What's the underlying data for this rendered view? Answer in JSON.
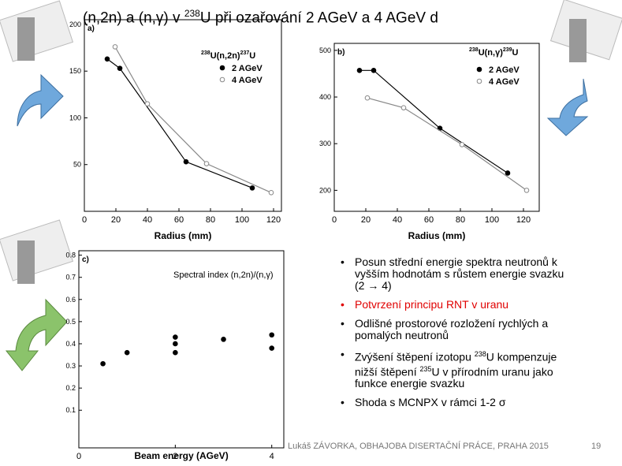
{
  "title": [
    {
      "text": "(n,2n) a (n,γ) v "
    },
    {
      "text": "238",
      "sup": true
    },
    {
      "text": "U při ozařování 2 AGeV a 4 AGeV d"
    }
  ],
  "chart_data": [
    {
      "type": "scatter",
      "label": "a)",
      "fit": true,
      "annotation": [
        {
          "text": "238",
          "sup": true
        },
        {
          "text": "U(n,2n)"
        },
        {
          "text": "237",
          "sup": true
        },
        {
          "text": "U"
        }
      ],
      "xlabel": "Radius (mm)",
      "xlim": [
        0,
        125
      ],
      "xticks": [
        0,
        20,
        40,
        60,
        80,
        100,
        120
      ],
      "ylim": [
        0,
        205
      ],
      "yticks": [
        50,
        100,
        150,
        200
      ],
      "series": [
        {
          "name": "2 AGeV",
          "color": "#000000",
          "fill": "#000000",
          "x": [
            14.5,
            22.5,
            64.5,
            106.5
          ],
          "values": [
            163,
            153,
            53,
            25
          ]
        },
        {
          "name": "4 AGeV",
          "color": "#888888",
          "fill": "#ffffff",
          "x": [
            19.5,
            40,
            77.5,
            118.5
          ],
          "values": [
            176,
            115,
            51,
            20
          ]
        }
      ]
    },
    {
      "type": "scatter",
      "label": "b)",
      "fit": true,
      "annotation": [
        {
          "text": "238",
          "sup": true
        },
        {
          "text": "U(n,γ)"
        },
        {
          "text": "239",
          "sup": true
        },
        {
          "text": "U"
        }
      ],
      "xlabel": "Radius (mm)",
      "xlim": [
        0,
        130
      ],
      "xticks": [
        0,
        20,
        40,
        60,
        80,
        100,
        120
      ],
      "ylim": [
        155,
        515
      ],
      "yticks": [
        200,
        300,
        400,
        500
      ],
      "series": [
        {
          "name": "2 AGeV",
          "color": "#000000",
          "fill": "#000000",
          "x": [
            16,
            25,
            67,
            110
          ],
          "values": [
            457,
            457,
            333,
            237
          ]
        },
        {
          "name": "4 AGeV",
          "color": "#888888",
          "fill": "#ffffff",
          "x": [
            21,
            44,
            81,
            122
          ],
          "values": [
            398,
            377,
            298,
            200
          ]
        }
      ]
    },
    {
      "type": "scatter",
      "label": "c)",
      "fit": false,
      "annotation": [
        {
          "text": "Spectral index (n,2n)/(n,γ)"
        }
      ],
      "xlabel": "Beam energy (AGeV)",
      "xlim": [
        0,
        4.25
      ],
      "xticks": [
        0,
        2,
        4
      ],
      "ylim": [
        -0.07,
        0.82
      ],
      "yticks": [
        0.1,
        0.2,
        0.3,
        0.4,
        0.5,
        0.6,
        0.7,
        0.8
      ],
      "series": [
        {
          "color": "#000000",
          "fill": "#000000",
          "x": [
            0.5,
            1,
            2,
            2,
            2,
            3,
            4,
            4
          ],
          "values": [
            0.31,
            0.36,
            0.43,
            0.4,
            0.36,
            0.42,
            0.44,
            0.38
          ]
        }
      ]
    }
  ],
  "bullets": [
    {
      "segments": [
        {
          "text": "Posun střední energie spektra neutronů k vyšším hodnotám s růstem energie svazku (2 → 4)"
        }
      ]
    },
    {
      "color": "#e00000",
      "segments": [
        {
          "text": "Potvrzení principu RNT v uranu"
        }
      ]
    },
    {
      "segments": [
        {
          "text": "Odlišné prostorové rozložení rychlých a pomalých neutronů"
        }
      ]
    },
    {
      "segments": [
        {
          "text": "Zvýšení štěpení izotopu "
        },
        {
          "text": "238",
          "sup": true
        },
        {
          "text": "U kompenzuje nižší štěpení "
        },
        {
          "text": "235",
          "sup": true
        },
        {
          "text": "U v přírodním uranu jako funkce energie svazku"
        }
      ]
    },
    {
      "segments": [
        {
          "text": "Shoda s MCNPX v rámci 1-2 σ"
        }
      ]
    }
  ],
  "footer": "Lukáš ZÁVORKA, OBHAJOBA DISERTAČNÍ PRÁCE, PRAHA 2015",
  "page": "19"
}
